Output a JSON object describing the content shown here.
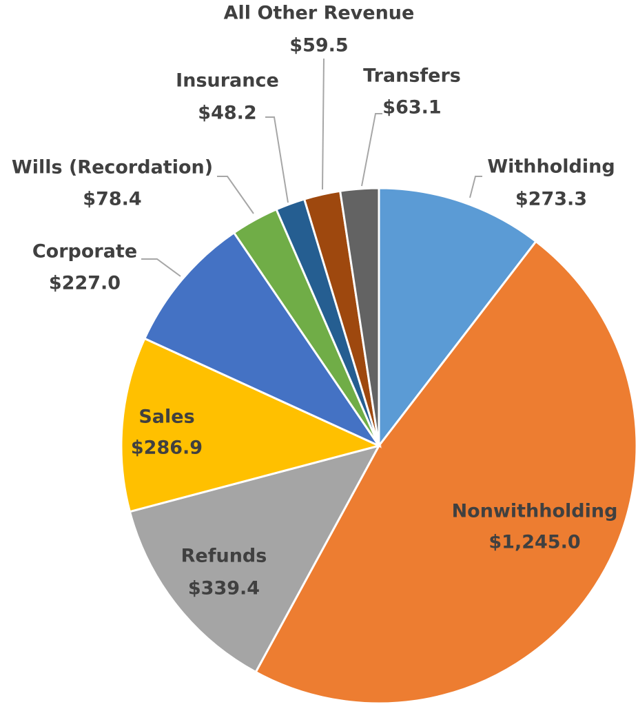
{
  "chart_data": {
    "type": "pie",
    "categories": [
      "Withholding",
      "Nonwithholding",
      "Refunds",
      "Sales",
      "Corporate",
      "Wills (Recordation)",
      "Insurance",
      "All Other Revenue",
      "Transfers"
    ],
    "values": [
      273.3,
      1245.0,
      339.4,
      286.9,
      227.0,
      78.4,
      48.2,
      59.5,
      63.1
    ],
    "value_labels": [
      "$273.3",
      "$1,245.0",
      "$339.4",
      "$286.9",
      "$227.0",
      "$78.4",
      "$48.2",
      "$59.5",
      "$63.1"
    ],
    "colors": [
      "#5b9bd5",
      "#ed7d31",
      "#a5a5a5",
      "#ffc000",
      "#4472c4",
      "#70ad47",
      "#255e91",
      "#9e480e",
      "#636363"
    ]
  }
}
